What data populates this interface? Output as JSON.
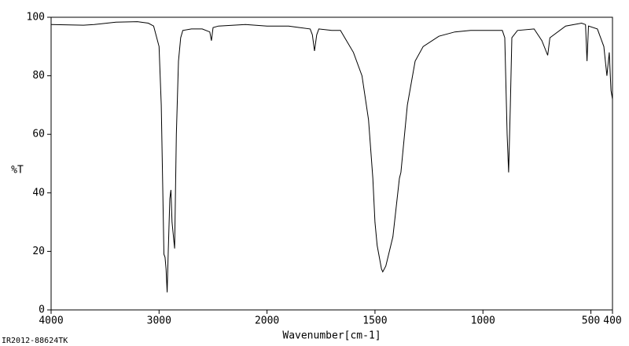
{
  "chart_data": {
    "type": "line",
    "x_label": "Wavenumber[cm-1]",
    "y_label": "%T",
    "footnote": "IR2012-88624TK",
    "color": "#000000",
    "xlim": [
      4000,
      400
    ],
    "xbreak": 2000,
    "ylim": [
      0,
      100
    ],
    "xticks": [
      4000,
      3000,
      2000,
      1500,
      1000,
      500,
      400
    ],
    "yticks": [
      0,
      20,
      40,
      60,
      80,
      100
    ],
    "x": [
      4000,
      3700,
      3600,
      3400,
      3200,
      3100,
      3050,
      3000,
      2980,
      2965,
      2955,
      2945,
      2935,
      2925,
      2915,
      2900,
      2890,
      2880,
      2856,
      2840,
      2820,
      2800,
      2780,
      2700,
      2600,
      2530,
      2515,
      2500,
      2450,
      2200,
      2000,
      1900,
      1850,
      1800,
      1790,
      1780,
      1770,
      1760,
      1700,
      1660,
      1640,
      1600,
      1560,
      1530,
      1510,
      1500,
      1490,
      1470,
      1464,
      1450,
      1417,
      1387,
      1380,
      1350,
      1314,
      1277,
      1204,
      1130,
      1057,
      910,
      899,
      888,
      881,
      873,
      866,
      840,
      763,
      727,
      700,
      690,
      617,
      543,
      525,
      518,
      511,
      470,
      440,
      426,
      415,
      407,
      400
    ],
    "values": [
      97.5,
      97.3,
      97.5,
      98.3,
      98.5,
      98,
      97,
      90,
      70,
      40,
      19,
      18,
      14,
      6,
      20,
      38,
      41,
      30,
      21,
      60,
      85,
      93,
      95.5,
      96,
      96,
      95,
      92,
      96.5,
      97,
      97.5,
      97,
      97,
      96.5,
      96,
      94,
      88.5,
      94,
      96,
      95.5,
      95.5,
      93,
      88,
      80,
      65,
      45,
      30,
      22,
      14,
      13,
      15,
      25,
      45,
      47,
      70,
      85,
      90,
      93.5,
      95,
      95.5,
      95.5,
      93,
      60,
      47,
      70,
      93,
      95.5,
      96,
      92,
      87,
      93,
      97,
      98,
      97.5,
      85,
      97,
      96,
      90,
      80,
      88,
      75,
      72
    ]
  }
}
